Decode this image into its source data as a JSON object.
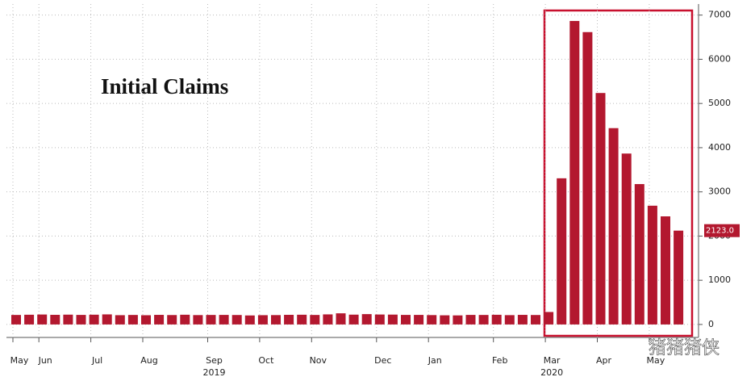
{
  "chart_data": {
    "type": "bar",
    "title": "Initial Claims",
    "categories": [
      "May",
      null,
      "Jun",
      null,
      null,
      null,
      "Jul",
      null,
      null,
      null,
      "Aug",
      null,
      null,
      null,
      null,
      "Sep",
      null,
      null,
      null,
      "Oct",
      null,
      null,
      null,
      "Nov",
      null,
      null,
      null,
      null,
      "Dec",
      null,
      null,
      null,
      "Jan",
      null,
      null,
      null,
      null,
      "Feb",
      null,
      null,
      null,
      "Mar",
      null,
      null,
      null,
      "Apr",
      null,
      null,
      null,
      "May",
      null,
      null
    ],
    "year_labels": [
      null,
      null,
      null,
      null,
      null,
      null,
      null,
      null,
      null,
      null,
      null,
      null,
      null,
      null,
      null,
      "2019",
      null,
      null,
      null,
      null,
      null,
      null,
      null,
      null,
      null,
      null,
      null,
      null,
      null,
      null,
      null,
      null,
      null,
      null,
      null,
      null,
      null,
      null,
      null,
      null,
      null,
      "2020",
      null,
      null,
      null,
      null,
      null,
      null,
      null,
      null,
      null,
      null
    ],
    "values": [
      215,
      220,
      225,
      218,
      222,
      216,
      221,
      228,
      210,
      215,
      209,
      217,
      213,
      220,
      212,
      215,
      216,
      214,
      204,
      210,
      212,
      218,
      220,
      215,
      228,
      252,
      222,
      234,
      225,
      223,
      216,
      216,
      212,
      207,
      205,
      216,
      215,
      219,
      211,
      217,
      214,
      282,
      3307,
      6867,
      6615,
      5237,
      4442,
      3867,
      3176,
      2687,
      2446,
      2123
    ],
    "value_labels": [
      null,
      null,
      null,
      null,
      null,
      null,
      null,
      null,
      null,
      null,
      null,
      null,
      null,
      null,
      null,
      null,
      null,
      null,
      null,
      null,
      null,
      null,
      null,
      null,
      null,
      null,
      null,
      null,
      null,
      null,
      null,
      null,
      null,
      null,
      null,
      null,
      null,
      null,
      null,
      null,
      null,
      null,
      null,
      null,
      null,
      null,
      null,
      null,
      null,
      null,
      null,
      "2123.0"
    ],
    "color": "#b3182f",
    "ylim": [
      -250,
      7250
    ],
    "yticks": [
      0,
      1000,
      2000,
      3000,
      4000,
      5000,
      6000,
      7000
    ],
    "grid": true,
    "watermark": "猪猪猪侠"
  }
}
